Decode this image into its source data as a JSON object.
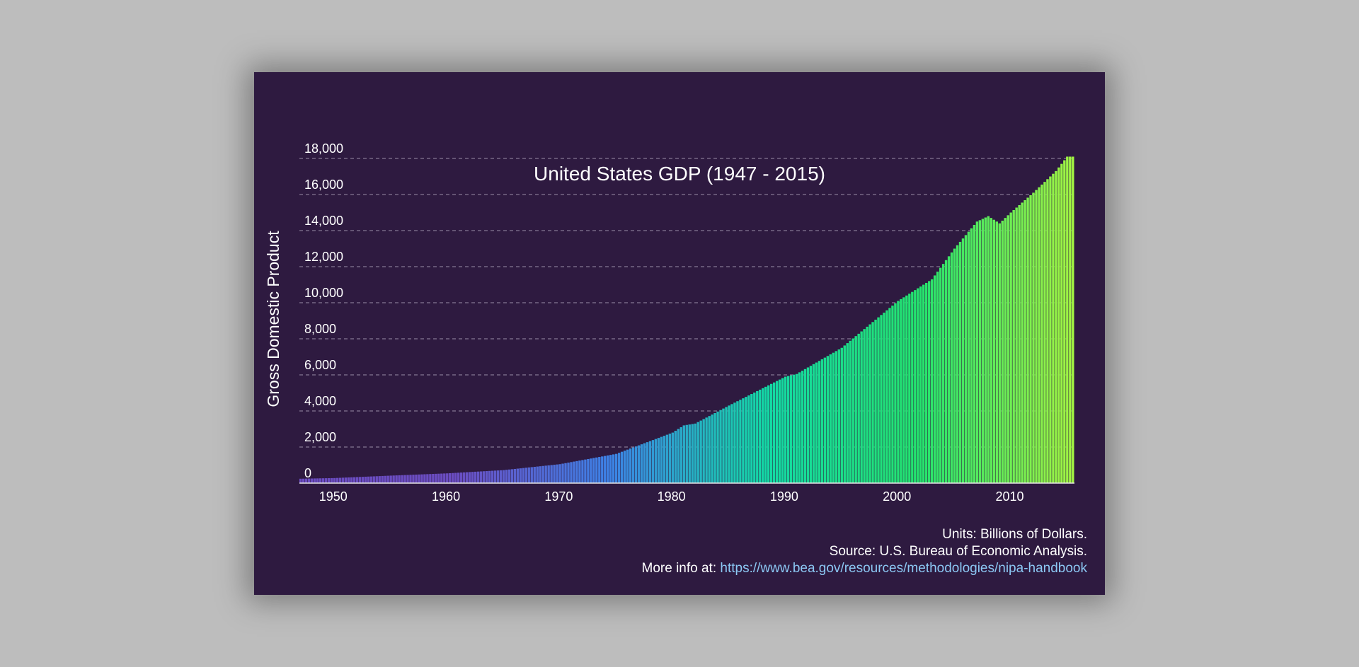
{
  "chart_data": {
    "type": "bar",
    "title": "United States GDP (1947 - 2015)",
    "xlabel": "",
    "ylabel": "Gross Domestic Product",
    "ylim": [
      0,
      18000
    ],
    "xlim": [
      "1947-01-01",
      "2015-07-01"
    ],
    "yticks": [
      "0",
      "2,000",
      "4,000",
      "6,000",
      "8,000",
      "10,000",
      "12,000",
      "14,000",
      "16,000",
      "18,000"
    ],
    "ytick_values": [
      0,
      2000,
      4000,
      6000,
      8000,
      10000,
      12000,
      14000,
      16000,
      18000
    ],
    "xticks": [
      "1950",
      "1960",
      "1970",
      "1980",
      "1990",
      "2000",
      "2010"
    ],
    "xtick_values": [
      "1950-01-01",
      "1960-01-01",
      "1970-01-01",
      "1980-01-01",
      "1990-01-01",
      "2000-01-01",
      "2010-01-01"
    ],
    "grid": true,
    "frequency": "quarterly",
    "x": [
      "1947",
      "1950",
      "1955",
      "1960",
      "1965",
      "1970",
      "1975",
      "1980",
      "1981",
      "1982",
      "1985",
      "1990",
      "1991",
      "1995",
      "2000",
      "2001",
      "2003",
      "2005",
      "2007",
      "2008",
      "2009",
      "2010",
      "2012",
      "2014",
      "2015"
    ],
    "values": [
      243,
      280,
      415,
      540,
      720,
      1050,
      1620,
      2800,
      3200,
      3300,
      4300,
      5900,
      6050,
      7500,
      10100,
      10500,
      11300,
      13000,
      14500,
      14800,
      14400,
      15000,
      16100,
      17300,
      18100
    ],
    "colors": {
      "gradient": [
        "#6b4dc2",
        "#6b4dc2",
        "#3d82e6",
        "#13d9a6",
        "#24e36e",
        "#a3f542"
      ],
      "background": "#2e1a40",
      "page_background": "#bdbdbd",
      "link": "#8cc8f4"
    }
  },
  "footer": {
    "units": "Units: Billions of Dollars.",
    "source": "Source: U.S. Bureau of Economic Analysis.",
    "more_info_prefix": "More info at:",
    "link": "https://www.bea.gov/resources/methodologies/nipa-handbook"
  }
}
